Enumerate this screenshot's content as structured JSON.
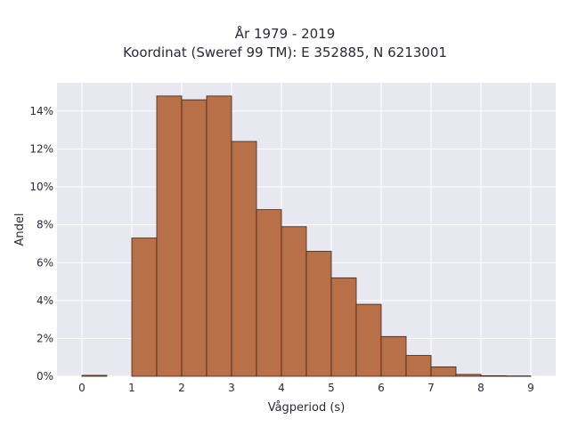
{
  "chart_data": {
    "type": "bar",
    "title_lines": [
      "År 1979 - 2019",
      "Koordinat (Sweref 99 TM): E 352885, N 6213001"
    ],
    "xlabel": "Vågperiod (s)",
    "ylabel": "Andel",
    "xlim": [
      -0.5,
      9.5
    ],
    "ylim": [
      0,
      0.155
    ],
    "x_ticks": [
      0,
      1,
      2,
      3,
      4,
      5,
      6,
      7,
      8,
      9
    ],
    "x_tick_labels": [
      "0",
      "1",
      "2",
      "3",
      "4",
      "5",
      "6",
      "7",
      "8",
      "9"
    ],
    "y_ticks": [
      0,
      0.02,
      0.04,
      0.06,
      0.08,
      0.1,
      0.12,
      0.14
    ],
    "y_tick_labels": [
      "0%",
      "2%",
      "4%",
      "6%",
      "8%",
      "10%",
      "12%",
      "14%"
    ],
    "bin_width": 0.5,
    "bin_starts": [
      0,
      0.5,
      1,
      1.5,
      2,
      2.5,
      3,
      3.5,
      4,
      4.5,
      5,
      5.5,
      6,
      6.5,
      7,
      7.5,
      8,
      8.5
    ],
    "values": [
      0.0005,
      0,
      0.073,
      0.148,
      0.146,
      0.148,
      0.124,
      0.088,
      0.079,
      0.066,
      0.052,
      0.038,
      0.021,
      0.011,
      0.005,
      0.001,
      0.0003,
      0.0002
    ],
    "bar_color": "#b87048",
    "bar_edge_color": "#3a2418",
    "plot_background": "#e8e8f0",
    "grid": true,
    "grid_color": "#ffffff"
  }
}
